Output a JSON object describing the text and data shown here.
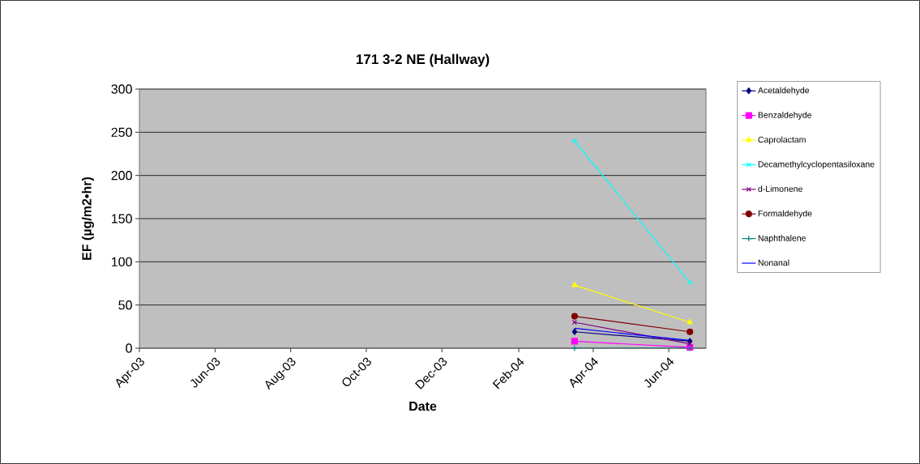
{
  "chart_data": {
    "type": "line",
    "title": "171 3-2 NE (Hallway)",
    "xlabel": "Date",
    "ylabel": "EF (µg/m2•hr)",
    "x": [
      "2004-03-17",
      "2004-06-18"
    ],
    "xlim": [
      "2003-04-01",
      "2004-07-01"
    ],
    "xticks": [
      {
        "value": "2003-04-01",
        "label": "Apr-03"
      },
      {
        "value": "2003-06-01",
        "label": "Jun-03"
      },
      {
        "value": "2003-08-01",
        "label": "Aug-03"
      },
      {
        "value": "2003-10-01",
        "label": "Oct-03"
      },
      {
        "value": "2003-12-01",
        "label": "Dec-03"
      },
      {
        "value": "2004-02-01",
        "label": "Feb-04"
      },
      {
        "value": "2004-04-01",
        "label": "Apr-04"
      },
      {
        "value": "2004-06-01",
        "label": "Jun-04"
      }
    ],
    "ylim": [
      0,
      300
    ],
    "yticks": [
      0,
      50,
      100,
      150,
      200,
      250,
      300
    ],
    "grid": "y",
    "legend": "right",
    "series": [
      {
        "name": "Acetaldehyde",
        "color": "#000080",
        "marker": "diamond",
        "values": [
          19,
          8
        ]
      },
      {
        "name": "Benzaldehyde",
        "color": "#ff00ff",
        "marker": "square",
        "values": [
          8,
          1
        ]
      },
      {
        "name": "Caprolactam",
        "color": "#ffff00",
        "marker": "triangle",
        "values": [
          73,
          30
        ]
      },
      {
        "name": "Decamethylcyclopentasiloxane",
        "color": "#00ffff",
        "marker": "cross",
        "values": [
          240,
          76
        ]
      },
      {
        "name": "d-Limonene",
        "color": "#800080",
        "marker": "cross",
        "values": [
          30,
          5
        ]
      },
      {
        "name": "Formaldehyde",
        "color": "#800000",
        "marker": "circle",
        "values": [
          37,
          19
        ]
      },
      {
        "name": "Naphthalene",
        "color": "#008080",
        "marker": "plus",
        "values": [
          0,
          0
        ]
      },
      {
        "name": "Nonanal",
        "color": "#0000ff",
        "marker": "none",
        "values": [
          23,
          9
        ]
      }
    ]
  }
}
